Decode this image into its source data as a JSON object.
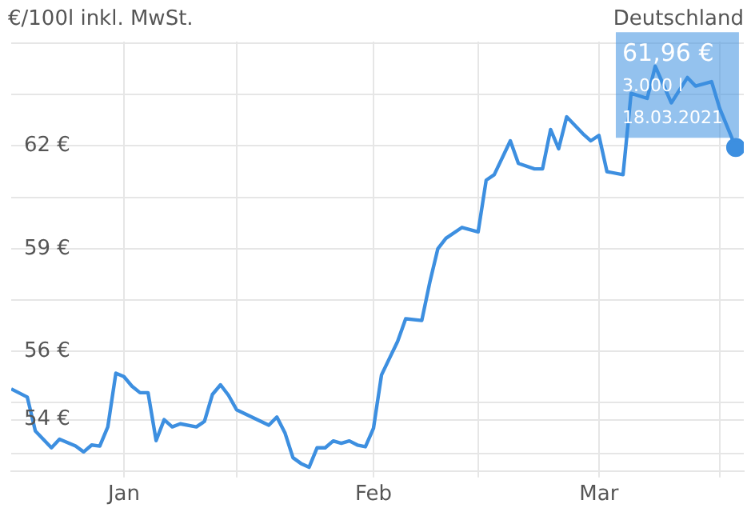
{
  "chart_data": {
    "type": "line",
    "title": "€/100l inkl. MwSt.",
    "subtitle": "Deutschland",
    "x": [
      "2020-12-18",
      "2020-12-20",
      "2020-12-21",
      "2020-12-23",
      "2020-12-24",
      "2020-12-26",
      "2020-12-27",
      "2020-12-28",
      "2020-12-29",
      "2020-12-30",
      "2020-12-31",
      "2021-01-01",
      "2021-01-02",
      "2021-01-03",
      "2021-01-04",
      "2021-01-05",
      "2021-01-06",
      "2021-01-07",
      "2021-01-08",
      "2021-01-10",
      "2021-01-11",
      "2021-01-12",
      "2021-01-13",
      "2021-01-14",
      "2021-01-15",
      "2021-01-19",
      "2021-01-20",
      "2021-01-21",
      "2021-01-22",
      "2021-01-23",
      "2021-01-24",
      "2021-01-25",
      "2021-01-26",
      "2021-01-27",
      "2021-01-28",
      "2021-01-29",
      "2021-01-30",
      "2021-01-31",
      "2021-02-01",
      "2021-02-02",
      "2021-02-03",
      "2021-02-04",
      "2021-02-05",
      "2021-02-07",
      "2021-02-08",
      "2021-02-09",
      "2021-02-10",
      "2021-02-12",
      "2021-02-14",
      "2021-02-15",
      "2021-02-16",
      "2021-02-18",
      "2021-02-19",
      "2021-02-21",
      "2021-02-22",
      "2021-02-23",
      "2021-02-24",
      "2021-02-25",
      "2021-02-27",
      "2021-02-28",
      "2021-03-01",
      "2021-03-02",
      "2021-03-04",
      "2021-03-05",
      "2021-03-07",
      "2021-03-08",
      "2021-03-10",
      "2021-03-12",
      "2021-03-13",
      "2021-03-15",
      "2021-03-16",
      "2021-03-18"
    ],
    "series": [
      {
        "color": "#3d8fe0",
        "values": [
          54.9,
          54.66,
          53.67,
          53.18,
          53.43,
          53.23,
          53.06,
          53.26,
          53.23,
          53.79,
          55.36,
          55.26,
          54.98,
          54.79,
          54.79,
          53.39,
          54.0,
          53.79,
          53.88,
          53.79,
          53.95,
          54.74,
          55.02,
          54.71,
          54.29,
          53.84,
          54.08,
          53.62,
          52.89,
          52.72,
          52.61,
          53.18,
          53.18,
          53.38,
          53.31,
          53.38,
          53.26,
          53.21,
          53.75,
          55.31,
          55.8,
          56.29,
          56.95,
          56.9,
          58.02,
          59.0,
          59.3,
          59.62,
          59.49,
          61.0,
          61.16,
          62.15,
          61.49,
          61.33,
          61.33,
          62.48,
          61.92,
          62.85,
          62.36,
          62.15,
          62.31,
          61.25,
          61.16,
          63.54,
          63.39,
          64.33,
          63.26,
          64.0,
          63.75,
          63.88,
          63.1,
          61.96
        ]
      }
    ],
    "xlim": [
      "2020-12-18",
      "2021-03-19"
    ],
    "xticks": [
      {
        "value": "2021-01-01",
        "label": "Jan"
      },
      {
        "value": "2021-01-15",
        "label": null
      },
      {
        "value": "2021-02-01",
        "label": "Feb"
      },
      {
        "value": "2021-02-14",
        "label": null
      },
      {
        "value": "2021-03-01",
        "label": "Mar"
      },
      {
        "value": "2021-03-16",
        "label": null
      }
    ],
    "ylim": [
      52.5,
      65.05
    ],
    "yticks": [
      {
        "value": 53,
        "label": null
      },
      {
        "value": 54,
        "label": "54 €"
      },
      {
        "value": 54.5,
        "label": null
      },
      {
        "value": 56,
        "label": "56 €"
      },
      {
        "value": 57.5,
        "label": null
      },
      {
        "value": 59,
        "label": "59 €"
      },
      {
        "value": 60.5,
        "label": null
      },
      {
        "value": 62,
        "label": "62 €"
      },
      {
        "value": 63.5,
        "label": null
      },
      {
        "value": 65,
        "label": null
      }
    ],
    "annotations": [
      "61,96 €",
      "3.000 l",
      "18.03.2021"
    ],
    "grid": true,
    "legend": false,
    "marker": "none",
    "line_style": "solid"
  }
}
